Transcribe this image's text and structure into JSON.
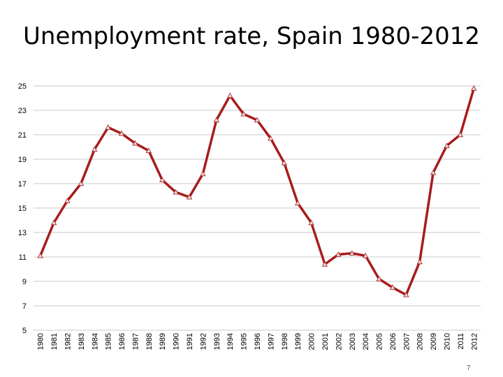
{
  "slide": {
    "title": "Unemployment rate, Spain 1980-2012",
    "page_number": "7"
  },
  "chart_data": {
    "type": "line",
    "title": "Unemployment rate, Spain 1980-2012",
    "xlabel": "",
    "ylabel": "",
    "ylim": [
      5,
      25
    ],
    "yticks": [
      5,
      7,
      9,
      11,
      13,
      15,
      17,
      19,
      21,
      23,
      25
    ],
    "grid": "horizontal",
    "legend": "none",
    "line_color": "#a81c1c",
    "marker": "triangle",
    "categories": [
      "1980",
      "1981",
      "1982",
      "1983",
      "1984",
      "1985",
      "1986",
      "1987",
      "1988",
      "1989",
      "1990",
      "1991",
      "1992",
      "1993",
      "1994",
      "1995",
      "1996",
      "1997",
      "1998",
      "1999",
      "2000",
      "2001",
      "2002",
      "2003",
      "2004",
      "2005",
      "2006",
      "2007",
      "2008",
      "2009",
      "2010",
      "2011",
      "2012"
    ],
    "series": [
      {
        "values": [
          11.1,
          13.8,
          15.6,
          17.0,
          19.8,
          21.6,
          21.1,
          20.3,
          19.7,
          17.3,
          16.3,
          15.9,
          17.8,
          22.2,
          24.2,
          22.7,
          22.2,
          20.7,
          18.7,
          15.4,
          13.8,
          10.4,
          11.2,
          11.3,
          11.1,
          9.2,
          8.5,
          7.9,
          10.6,
          17.9,
          20.1,
          21.0,
          24.8
        ]
      }
    ]
  }
}
